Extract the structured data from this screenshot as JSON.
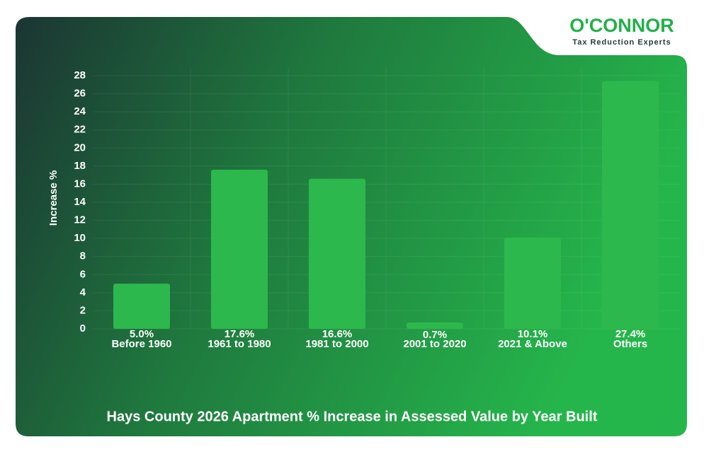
{
  "logo": {
    "name": "O'CONNOR",
    "tagline": "Tax Reduction Experts"
  },
  "chart_data": {
    "type": "bar",
    "title": "Hays County 2026 Apartment % Increase in Assessed Value by Year Built",
    "y_label": "Increase %",
    "categories": [
      "Before 1960",
      "1961 to 1980",
      "1981 to 2000",
      "2001 to 2020",
      "2021 & Above",
      "Others"
    ],
    "values": [
      5.0,
      17.6,
      16.6,
      0.7,
      10.1,
      27.4
    ],
    "value_labels": [
      "5.0%",
      "17.6%",
      "16.6%",
      "0.7%",
      "10.1%",
      "27.4%"
    ],
    "color": "#2db84d",
    "ylim": [
      0,
      28
    ],
    "yticks": [
      0,
      2,
      4,
      6,
      8,
      10,
      12,
      14,
      16,
      18,
      20,
      22,
      24,
      26,
      28
    ],
    "grid": true
  }
}
